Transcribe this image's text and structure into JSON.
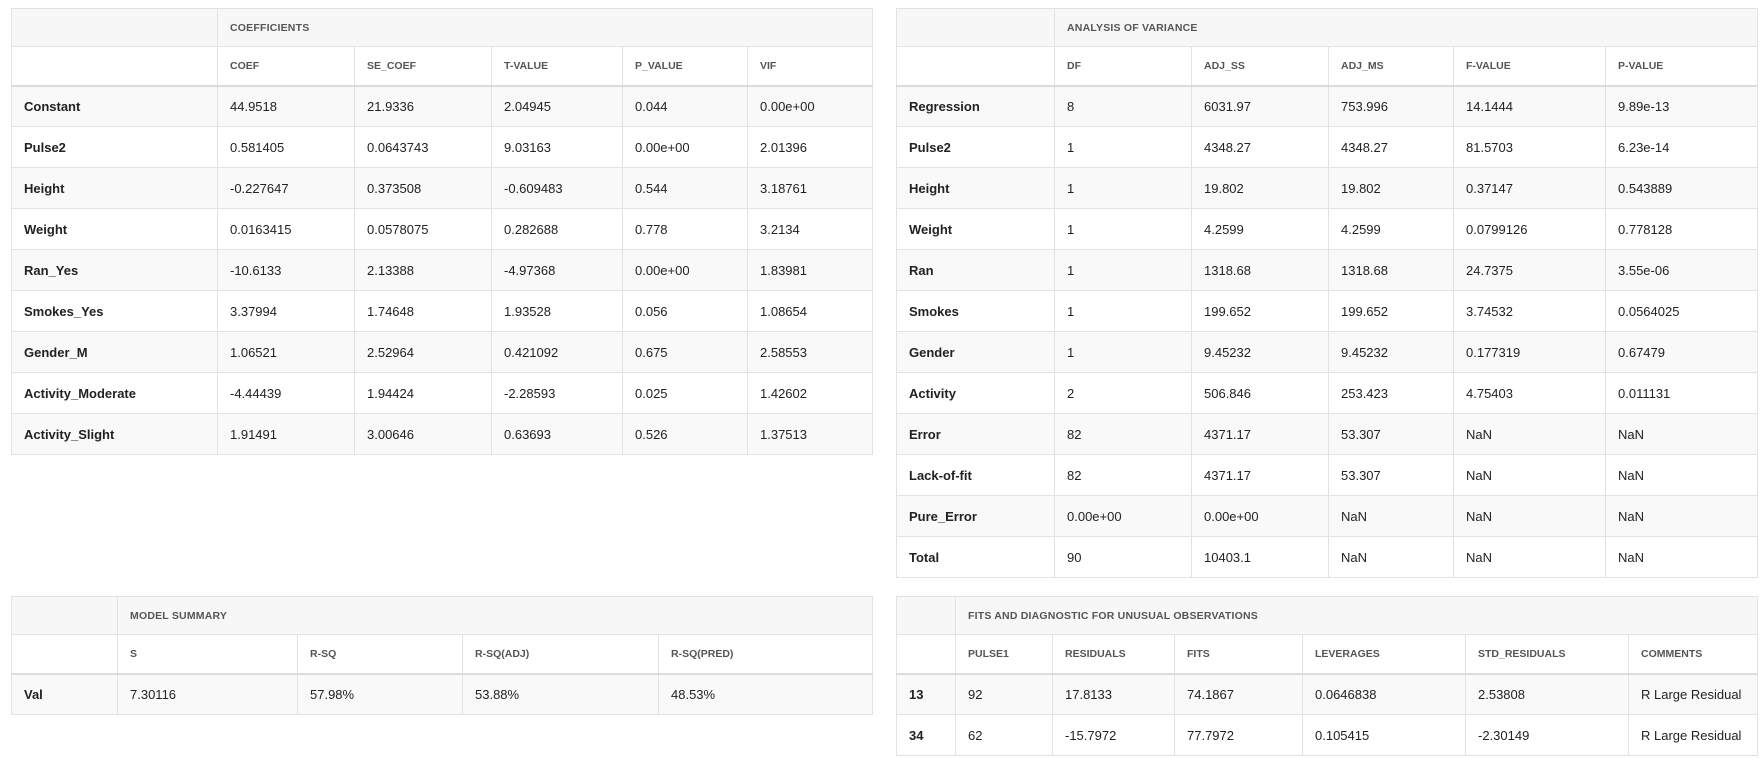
{
  "coefficients": {
    "title": "COEFFICIENTS",
    "columns": [
      "COEF",
      "SE_COEF",
      "T-VALUE",
      "P_VALUE",
      "VIF"
    ],
    "rows": [
      {
        "label": "Constant",
        "values": [
          "44.9518",
          "21.9336",
          "2.04945",
          "0.044",
          "0.00e+00"
        ]
      },
      {
        "label": "Pulse2",
        "values": [
          "0.581405",
          "0.0643743",
          "9.03163",
          "0.00e+00",
          "2.01396"
        ]
      },
      {
        "label": "Height",
        "values": [
          "-0.227647",
          "0.373508",
          "-0.609483",
          "0.544",
          "3.18761"
        ]
      },
      {
        "label": "Weight",
        "values": [
          "0.0163415",
          "0.0578075",
          "0.282688",
          "0.778",
          "3.2134"
        ]
      },
      {
        "label": "Ran_Yes",
        "values": [
          "-10.6133",
          "2.13388",
          "-4.97368",
          "0.00e+00",
          "1.83981"
        ]
      },
      {
        "label": "Smokes_Yes",
        "values": [
          "3.37994",
          "1.74648",
          "1.93528",
          "0.056",
          "1.08654"
        ]
      },
      {
        "label": "Gender_M",
        "values": [
          "1.06521",
          "2.52964",
          "0.421092",
          "0.675",
          "2.58553"
        ]
      },
      {
        "label": "Activity_Moderate",
        "values": [
          "-4.44439",
          "1.94424",
          "-2.28593",
          "0.025",
          "1.42602"
        ]
      },
      {
        "label": "Activity_Slight",
        "values": [
          "1.91491",
          "3.00646",
          "0.63693",
          "0.526",
          "1.37513"
        ]
      }
    ]
  },
  "anova": {
    "title": "ANALYSIS OF VARIANCE",
    "columns": [
      "DF",
      "ADJ_SS",
      "ADJ_MS",
      "F-VALUE",
      "P-VALUE"
    ],
    "rows": [
      {
        "label": "Regression",
        "values": [
          "8",
          "6031.97",
          "753.996",
          "14.1444",
          "9.89e-13"
        ]
      },
      {
        "label": "Pulse2",
        "values": [
          "1",
          "4348.27",
          "4348.27",
          "81.5703",
          "6.23e-14"
        ]
      },
      {
        "label": "Height",
        "values": [
          "1",
          "19.802",
          "19.802",
          "0.37147",
          "0.543889"
        ]
      },
      {
        "label": "Weight",
        "values": [
          "1",
          "4.2599",
          "4.2599",
          "0.0799126",
          "0.778128"
        ]
      },
      {
        "label": "Ran",
        "values": [
          "1",
          "1318.68",
          "1318.68",
          "24.7375",
          "3.55e-06"
        ]
      },
      {
        "label": "Smokes",
        "values": [
          "1",
          "199.652",
          "199.652",
          "3.74532",
          "0.0564025"
        ]
      },
      {
        "label": "Gender",
        "values": [
          "1",
          "9.45232",
          "9.45232",
          "0.177319",
          "0.67479"
        ]
      },
      {
        "label": "Activity",
        "values": [
          "2",
          "506.846",
          "253.423",
          "4.75403",
          "0.011131"
        ]
      },
      {
        "label": "Error",
        "values": [
          "82",
          "4371.17",
          "53.307",
          "NaN",
          "NaN"
        ]
      },
      {
        "label": "Lack-of-fit",
        "values": [
          "82",
          "4371.17",
          "53.307",
          "NaN",
          "NaN"
        ]
      },
      {
        "label": "Pure_Error",
        "values": [
          "0.00e+00",
          "0.00e+00",
          "NaN",
          "NaN",
          "NaN"
        ]
      },
      {
        "label": "Total",
        "values": [
          "90",
          "10403.1",
          "NaN",
          "NaN",
          "NaN"
        ]
      }
    ]
  },
  "model_summary": {
    "title": "MODEL SUMMARY",
    "columns": [
      "S",
      "R-SQ",
      "R-SQ(ADJ)",
      "R-SQ(PRED)"
    ],
    "rows": [
      {
        "label": "Val",
        "values": [
          "7.30116",
          "57.98%",
          "53.88%",
          "48.53%"
        ]
      }
    ]
  },
  "fits": {
    "title": "FITS AND DIAGNOSTIC FOR UNUSUAL OBSERVATIONS",
    "columns": [
      "PULSE1",
      "RESIDUALS",
      "FITS",
      "LEVERAGES",
      "STD_RESIDUALS",
      "COMMENTS"
    ],
    "rows": [
      {
        "label": "13",
        "values": [
          "92",
          "17.8133",
          "74.1867",
          "0.0646838",
          "2.53808",
          "R Large Residual"
        ]
      },
      {
        "label": "34",
        "values": [
          "62",
          "-15.7972",
          "77.7972",
          "0.105415",
          "-2.30149",
          "R Large Residual"
        ]
      }
    ]
  }
}
